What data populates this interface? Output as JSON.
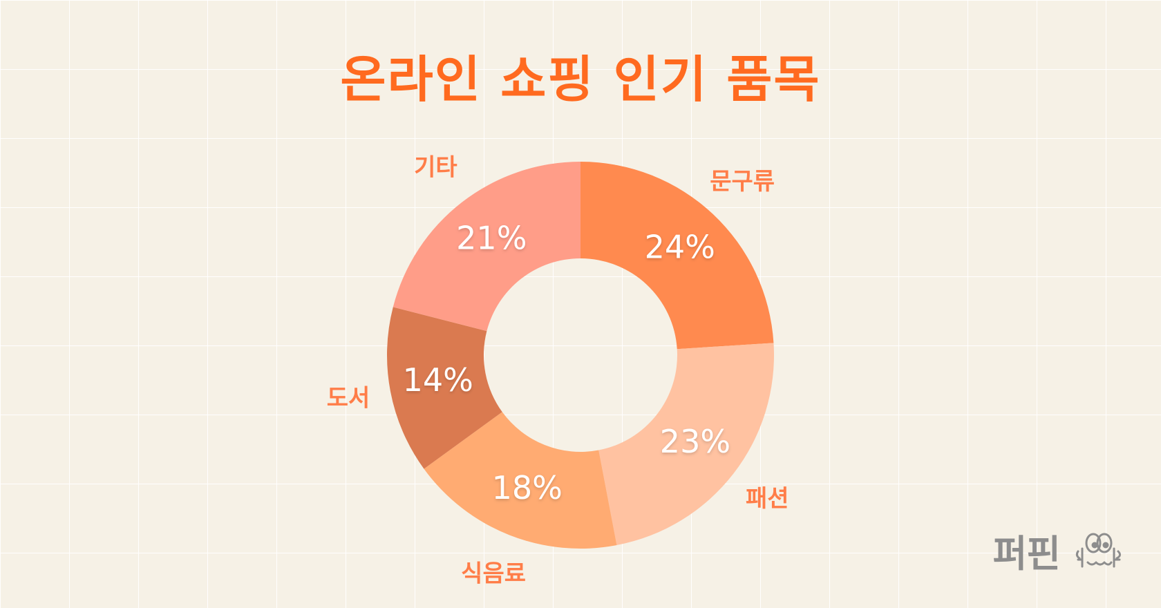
{
  "brand": {
    "name": "퍼핀",
    "icon": "puffin-mascot-icon"
  },
  "chart_data": {
    "type": "pie",
    "title": "온라인 쇼핑 인기 품목",
    "categories": [
      "문구류",
      "패션",
      "식음료",
      "도서",
      "기타"
    ],
    "values": [
      24,
      23,
      18,
      14,
      21
    ],
    "value_labels": [
      "24%",
      "23%",
      "18%",
      "14%",
      "21%"
    ],
    "colors": [
      "#ff8a4f",
      "#ffc2a1",
      "#ffab72",
      "#da7a50",
      "#ff9d88"
    ],
    "label_color": "#ff7d48",
    "donut": true,
    "start_angle_deg": 0,
    "direction": "clockwise"
  }
}
